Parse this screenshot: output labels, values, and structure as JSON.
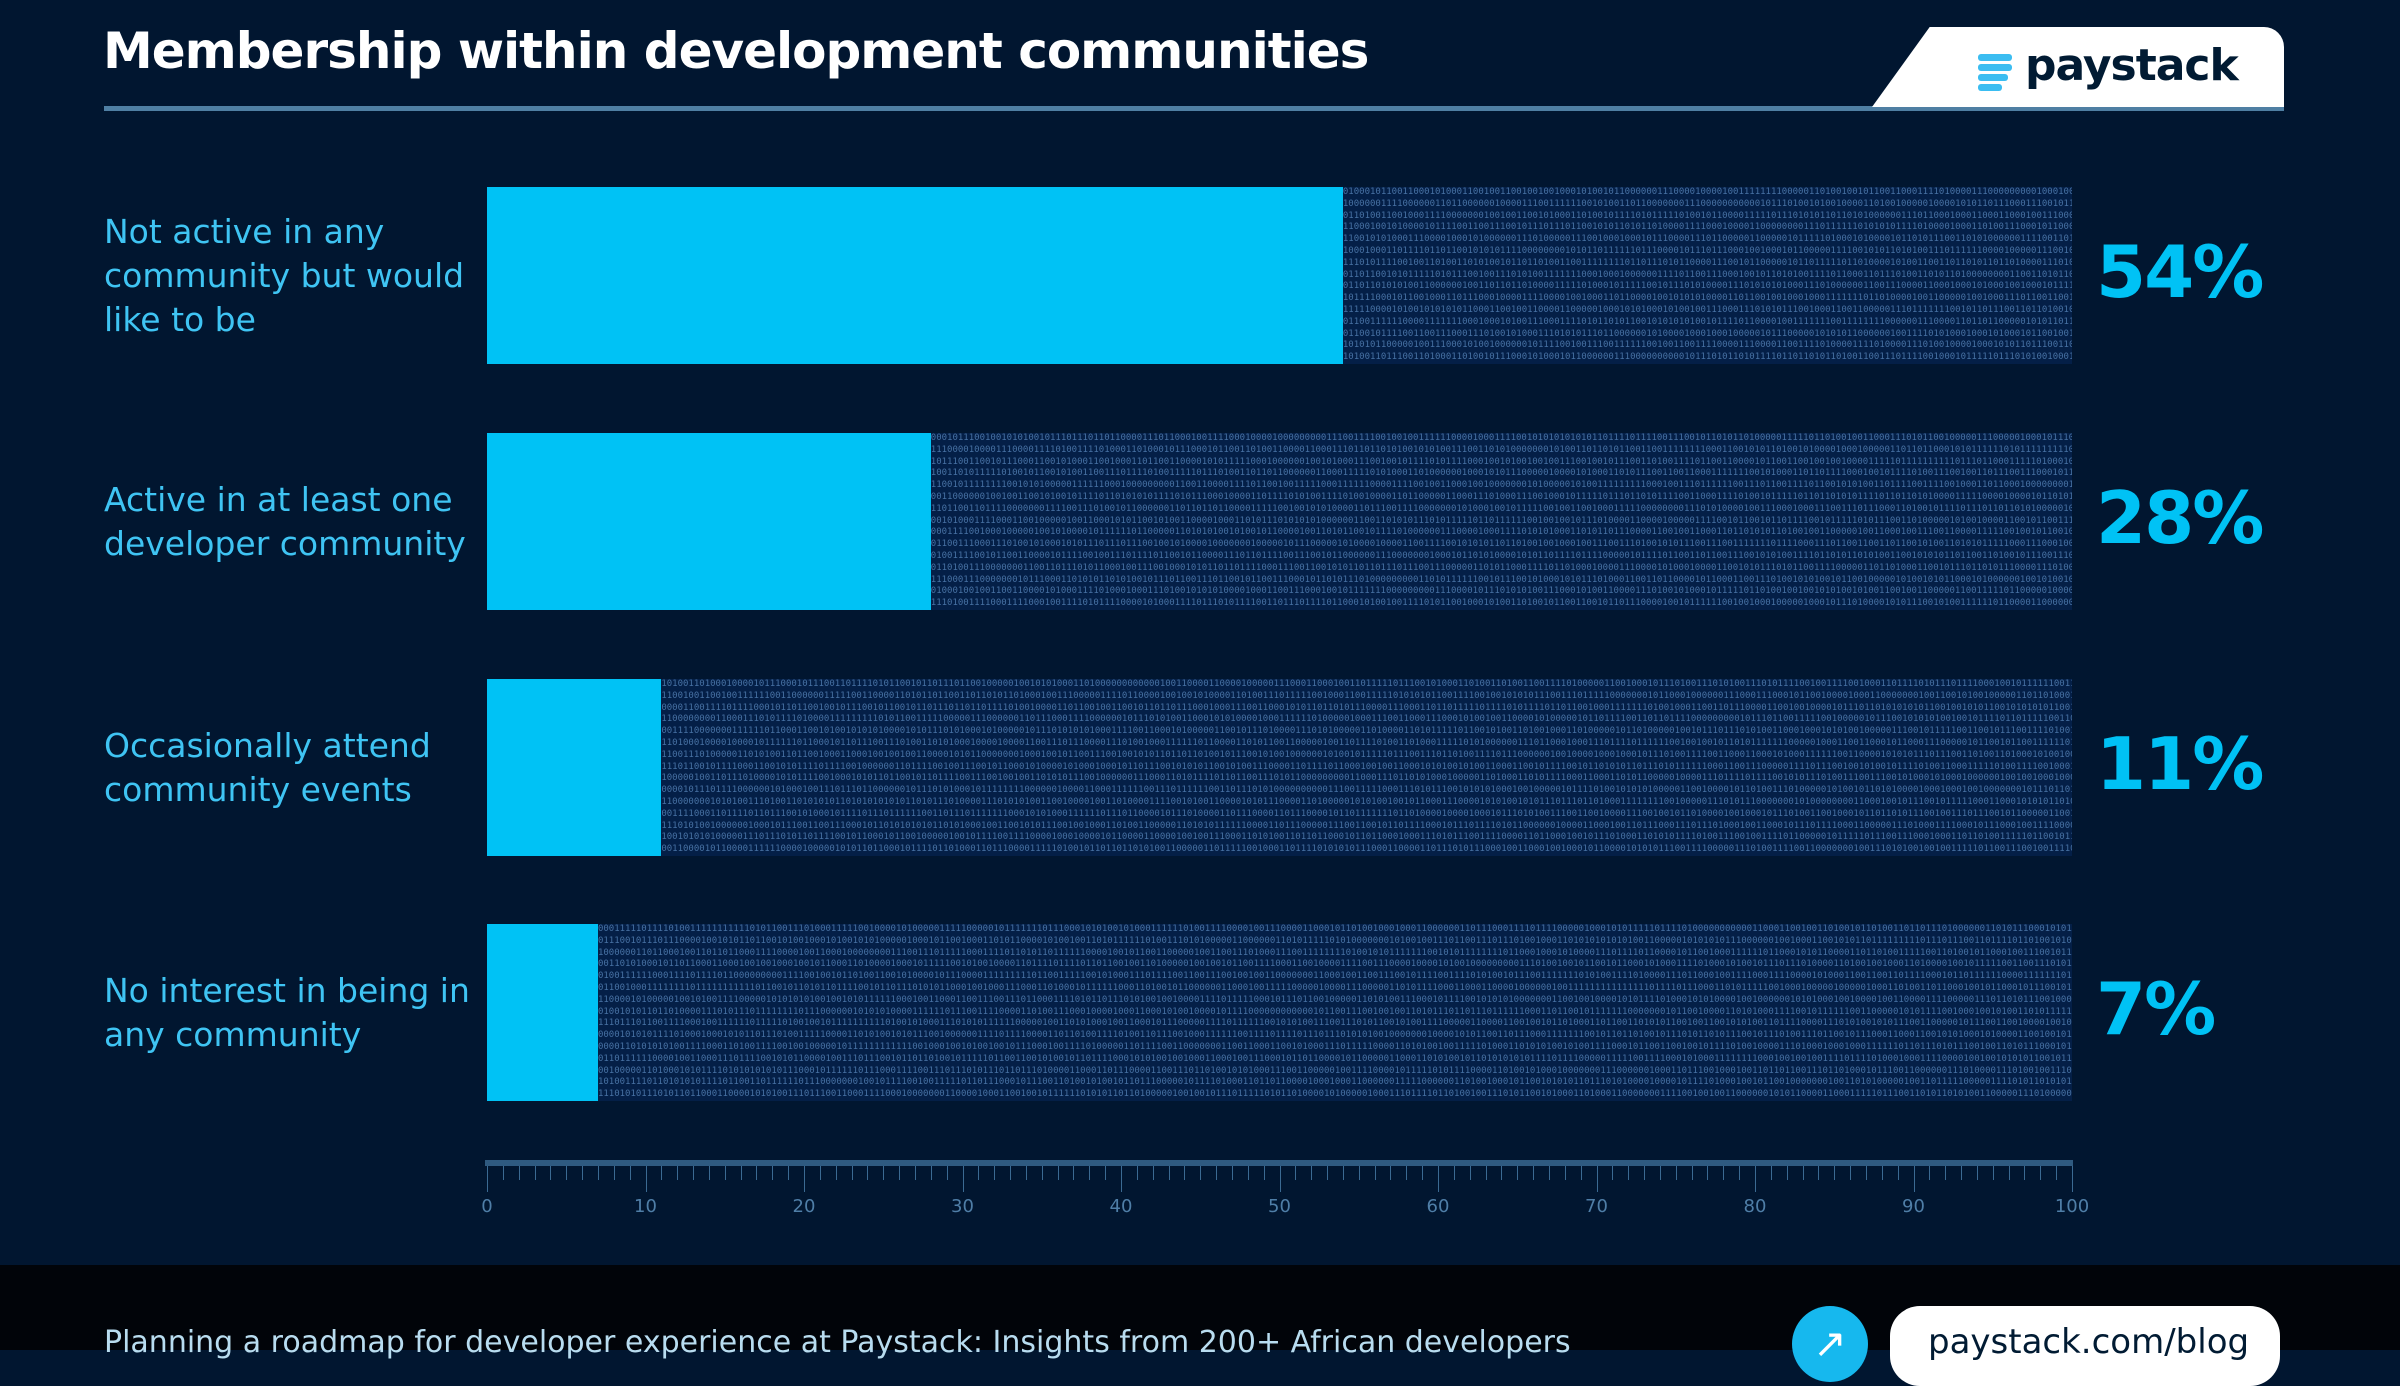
{
  "header": {
    "title": "Membership within development communities",
    "logo_text": "paystack"
  },
  "colors": {
    "background": "#011630",
    "bar": "#00c2f5",
    "label": "#3fc4f3",
    "axis": "#4f7ea7"
  },
  "chart_data": {
    "type": "bar",
    "orientation": "horizontal",
    "categories": [
      "Not active in any community but would like to be",
      "Active in at least one developer community",
      "Occasionally attend community events",
      "No interest in being in any community"
    ],
    "values": [
      54,
      28,
      11,
      7
    ],
    "data_labels": [
      "54%",
      "28%",
      "11%",
      "7%"
    ],
    "xlim": [
      0,
      100
    ],
    "x_ticks": [
      "0",
      "10",
      "20",
      "30",
      "40",
      "50",
      "60",
      "70",
      "80",
      "90",
      "100"
    ],
    "grid": false
  },
  "footer": {
    "text": "Planning a roadmap for developer experience at Paystack: Insights from 200+ African developers",
    "link": "paystack.com/blog",
    "arrow_icon": "arrow-up-right-icon"
  }
}
